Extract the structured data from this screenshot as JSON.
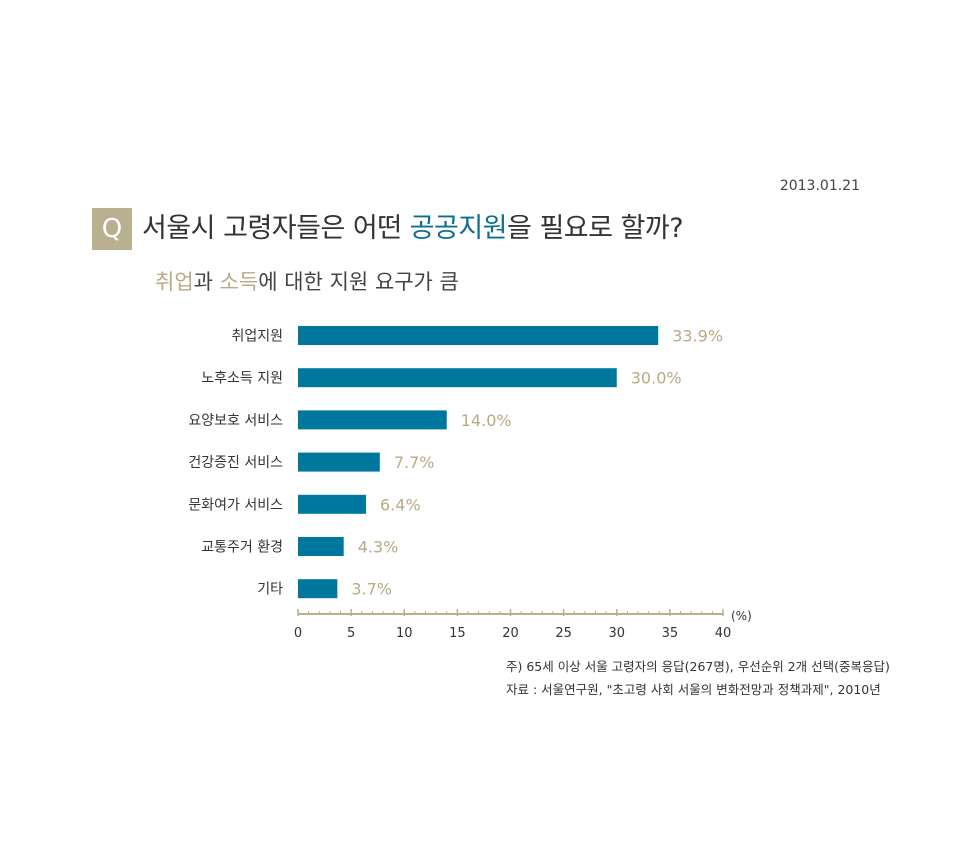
{
  "header": {
    "date": "2013.01.21",
    "badge": "Q",
    "title_pre": "서울시 고령자들은 어떤 ",
    "title_hl": "공공지원",
    "title_post": "을 필요로 할까?",
    "sub_a": "취업",
    "sub_b": "과 ",
    "sub_c": "소득",
    "sub_d": "에 대한 지원 요구가 큼"
  },
  "chart_data": {
    "type": "bar",
    "orientation": "horizontal",
    "categories": [
      "취업지원",
      "노후소득 지원",
      "요양보호 서비스",
      "건강증진 서비스",
      "문화여가 서비스",
      "교통주거 환경",
      "기타"
    ],
    "values": [
      33.9,
      30.0,
      14.0,
      7.7,
      6.4,
      4.3,
      3.7
    ],
    "value_labels": [
      "33.9%",
      "30.0%",
      "14.0%",
      "7.7%",
      "6.4%",
      "4.3%",
      "3.7%"
    ],
    "x_ticks": [
      "0",
      "5",
      "10",
      "15",
      "20",
      "25",
      "30",
      "35",
      "40"
    ],
    "x_unit": "(%)",
    "xlim": [
      0,
      40
    ],
    "grid": false,
    "bar_color": "#00789e",
    "label_color": "#b8aa84",
    "axis_color": "#b8b08f"
  },
  "notes": {
    "line1": "주) 65세 이상 서울 고령자의 응답(267명), 우선순위 2개 선택(중복응답)",
    "line2": "자료 : 서울연구원, \"초고령 사회 서울의 변화전망과 정책과제\", 2010년"
  }
}
